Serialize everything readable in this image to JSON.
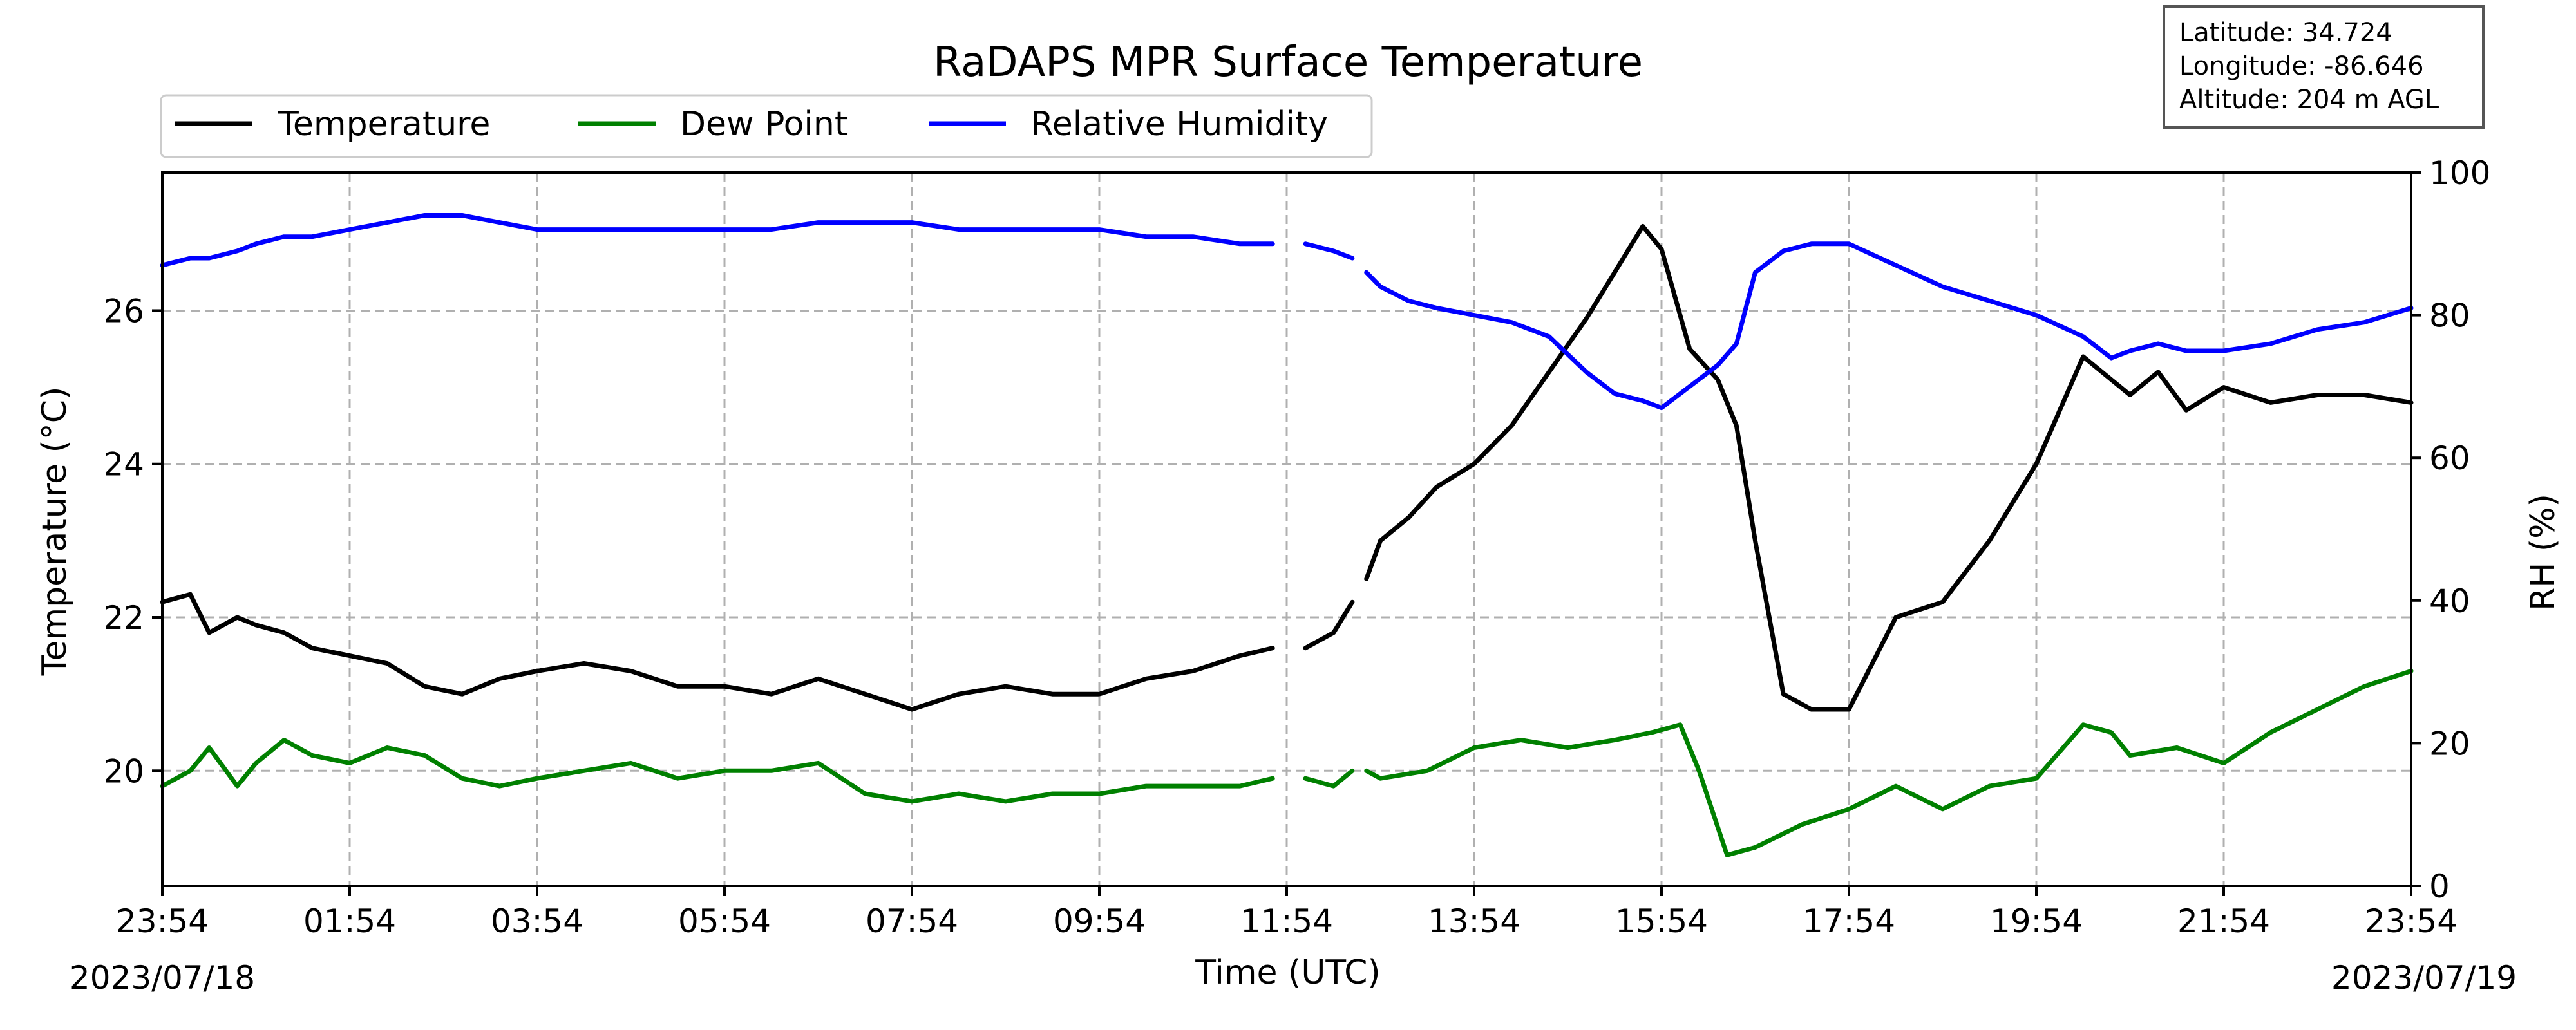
{
  "chart_data": {
    "type": "line",
    "title": "RaDAPS MPR Surface Temperature",
    "xlabel": "Time (UTC)",
    "ylabel": "Temperature ($^\\circ$C)",
    "ylabel_display": "Temperature (°C)",
    "ylabel_right": "RH (%)",
    "x_unit": "hours since 2023/07/18 23:54 UTC",
    "xlim": [
      0,
      24
    ],
    "ylim": [
      18.5,
      27.8
    ],
    "ylim_right": [
      0,
      100
    ],
    "x_ticks": [
      0,
      2,
      4,
      6,
      8,
      10,
      12,
      14,
      16,
      18,
      20,
      22,
      24
    ],
    "x_tick_labels": [
      "23:54",
      "01:54",
      "03:54",
      "05:54",
      "07:54",
      "09:54",
      "11:54",
      "13:54",
      "15:54",
      "17:54",
      "19:54",
      "21:54",
      "23:54"
    ],
    "y_ticks": [
      20,
      22,
      24,
      26
    ],
    "y_ticks_right": [
      0,
      20,
      40,
      60,
      80,
      100
    ],
    "date_start": "2023/07/18",
    "date_end": "2023/07/19",
    "grid": true,
    "legend_position": "top-left",
    "info_box": [
      "Latitude: 34.724",
      "Longitude: -86.646",
      "Altitude: 204 m AGL"
    ],
    "series": [
      {
        "name": "Temperature",
        "axis": "left",
        "color": "#000000",
        "x": [
          0.0,
          0.3,
          0.5,
          0.8,
          1.0,
          1.3,
          1.6,
          2.0,
          2.4,
          2.8,
          3.2,
          3.6,
          4.0,
          4.5,
          5.0,
          5.5,
          6.0,
          6.5,
          7.0,
          7.5,
          8.0,
          8.5,
          9.0,
          9.5,
          10.0,
          10.5,
          11.0,
          11.5,
          11.85,
          null,
          12.2,
          12.5,
          12.7,
          null,
          12.85,
          13.0,
          13.3,
          13.6,
          14.0,
          14.4,
          14.8,
          15.2,
          15.5,
          15.8,
          16.0,
          16.3,
          16.6,
          16.8,
          17.0,
          17.3,
          17.6,
          18.0,
          18.5,
          19.0,
          19.5,
          20.0,
          20.5,
          20.8,
          21.0,
          21.3,
          21.6,
          22.0,
          22.5,
          23.0,
          23.5,
          24.0
        ],
        "y": [
          22.2,
          22.3,
          21.8,
          22.0,
          21.9,
          21.8,
          21.6,
          21.5,
          21.4,
          21.1,
          21.0,
          21.2,
          21.3,
          21.4,
          21.3,
          21.1,
          21.1,
          21.0,
          21.2,
          21.0,
          20.8,
          21.0,
          21.1,
          21.0,
          21.0,
          21.2,
          21.3,
          21.5,
          21.6,
          null,
          21.6,
          21.8,
          22.2,
          null,
          22.5,
          23.0,
          23.3,
          23.7,
          24.0,
          24.5,
          25.2,
          25.9,
          26.5,
          27.1,
          26.8,
          25.5,
          25.1,
          24.5,
          23.0,
          21.0,
          20.8,
          20.8,
          22.0,
          22.2,
          23.0,
          24.0,
          25.4,
          25.1,
          24.9,
          25.2,
          24.7,
          25.0,
          24.8,
          24.9,
          24.9,
          24.8
        ]
      },
      {
        "name": "Dew Point",
        "axis": "left",
        "color": "#008000",
        "x": [
          0.0,
          0.3,
          0.5,
          0.8,
          1.0,
          1.3,
          1.6,
          2.0,
          2.4,
          2.8,
          3.2,
          3.6,
          4.0,
          4.5,
          5.0,
          5.5,
          6.0,
          6.5,
          7.0,
          7.5,
          8.0,
          8.5,
          9.0,
          9.5,
          10.0,
          10.5,
          11.0,
          11.5,
          11.85,
          null,
          12.2,
          12.5,
          12.7,
          null,
          12.85,
          13.0,
          13.5,
          14.0,
          14.5,
          15.0,
          15.5,
          15.9,
          16.2,
          16.4,
          16.7,
          17.0,
          17.5,
          18.0,
          18.5,
          19.0,
          19.5,
          20.0,
          20.5,
          20.8,
          21.0,
          21.5,
          22.0,
          22.5,
          23.0,
          23.5,
          24.0
        ],
        "y": [
          19.8,
          20.0,
          20.3,
          19.8,
          20.1,
          20.4,
          20.2,
          20.1,
          20.3,
          20.2,
          19.9,
          19.8,
          19.9,
          20.0,
          20.1,
          19.9,
          20.0,
          20.0,
          20.1,
          19.7,
          19.6,
          19.7,
          19.6,
          19.7,
          19.7,
          19.8,
          19.8,
          19.8,
          19.9,
          null,
          19.9,
          19.8,
          20.0,
          null,
          20.0,
          19.9,
          20.0,
          20.3,
          20.4,
          20.3,
          20.4,
          20.5,
          20.6,
          20.0,
          18.9,
          19.0,
          19.3,
          19.5,
          19.8,
          19.5,
          19.8,
          19.9,
          20.6,
          20.5,
          20.2,
          20.3,
          20.1,
          20.5,
          20.8,
          21.1,
          21.3
        ]
      },
      {
        "name": "Relative Humidity",
        "axis": "right",
        "color": "#0000ff",
        "x": [
          0.0,
          0.3,
          0.5,
          0.8,
          1.0,
          1.3,
          1.6,
          2.0,
          2.4,
          2.8,
          3.2,
          3.6,
          4.0,
          4.5,
          5.0,
          5.5,
          6.0,
          6.5,
          7.0,
          7.5,
          8.0,
          8.5,
          9.0,
          9.5,
          10.0,
          10.5,
          11.0,
          11.5,
          11.85,
          null,
          12.2,
          12.5,
          12.7,
          null,
          12.85,
          13.0,
          13.3,
          13.6,
          14.0,
          14.4,
          14.8,
          15.2,
          15.5,
          15.8,
          16.0,
          16.3,
          16.6,
          16.8,
          17.0,
          17.3,
          17.6,
          18.0,
          18.5,
          19.0,
          19.5,
          20.0,
          20.5,
          20.8,
          21.0,
          21.3,
          21.6,
          22.0,
          22.5,
          23.0,
          23.5,
          24.0
        ],
        "y": [
          87,
          88,
          88,
          89,
          90,
          91,
          91,
          92,
          93,
          94,
          94,
          93,
          92,
          92,
          92,
          92,
          92,
          92,
          93,
          93,
          93,
          92,
          92,
          92,
          92,
          91,
          91,
          90,
          90,
          null,
          90,
          89,
          88,
          null,
          86,
          84,
          82,
          81,
          80,
          79,
          77,
          72,
          69,
          68,
          67,
          70,
          73,
          76,
          86,
          89,
          90,
          90,
          87,
          84,
          82,
          80,
          77,
          74,
          75,
          76,
          75,
          75,
          76,
          78,
          79,
          81
        ]
      }
    ]
  }
}
